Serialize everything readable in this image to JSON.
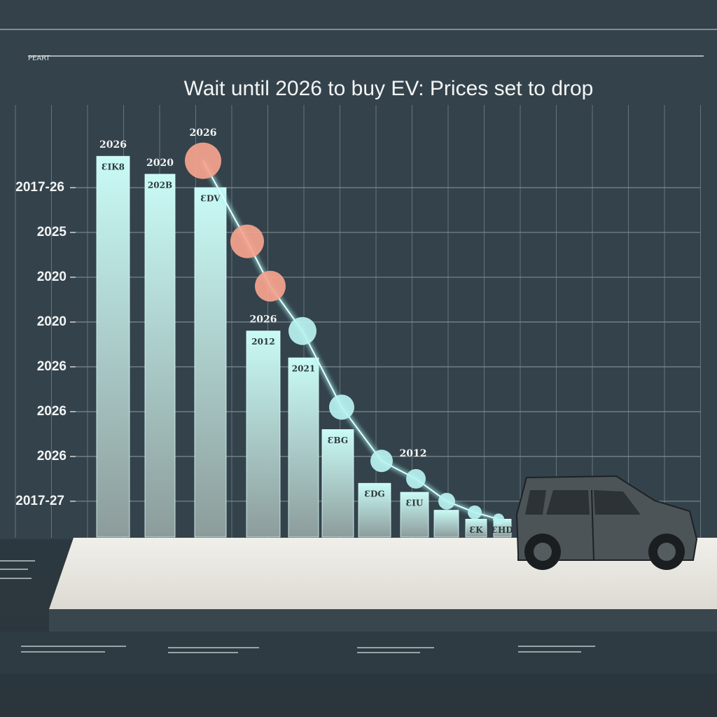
{
  "chart_data": {
    "type": "bar",
    "title": "Wait until 2026 to buy EV: Prices set to drop",
    "corner_label": "PEART",
    "categories": [
      null,
      null,
      null,
      null,
      null,
      null,
      null,
      null,
      null,
      null,
      null
    ],
    "values": [
      8.7,
      8.3,
      8.0,
      4.8,
      4.2,
      2.6,
      1.4,
      1.2,
      0.8,
      0.6,
      0.6
    ],
    "bar_top_labels": [
      "2026",
      "2020",
      null,
      "2026",
      null,
      null,
      null,
      null,
      null,
      null,
      null
    ],
    "bar_inner_labels": [
      "ƐIK8",
      "202B",
      "ƐDV",
      "2012",
      "2021",
      "ƐBG",
      "ƐDG",
      "ƐIU",
      null,
      "ƐK",
      "ƐHD"
    ],
    "bar_color_top": "#c9fbf6",
    "bar_color_bottom": "#8c9c9b",
    "line": {
      "values": [
        8.6,
        6.8,
        5.8,
        4.8,
        3.1,
        1.9,
        1.5,
        1.0,
        0.75,
        0.6
      ],
      "point_colors": [
        "#f6a48e",
        "#f6a48e",
        "#f6a48e",
        "#b9f3f1",
        "#b9f3f1",
        "#b9f3f1",
        "#b9f3f1",
        "#b9f3f1",
        "#b9f3f1",
        "#b9f3f1"
      ]
    },
    "annotations": [
      "2026",
      "2012"
    ],
    "ylim": [
      0.2,
      9
    ],
    "yticks": [
      {
        "value": 1,
        "label": "2017-27"
      },
      {
        "value": 2,
        "label": "2026"
      },
      {
        "value": 3,
        "label": "2026"
      },
      {
        "value": 4,
        "label": "2026"
      },
      {
        "value": 5,
        "label": "2020"
      },
      {
        "value": 6,
        "label": "2020"
      },
      {
        "value": 7,
        "label": "2025"
      },
      {
        "value": 8,
        "label": "2017-26"
      }
    ],
    "grid": true
  }
}
